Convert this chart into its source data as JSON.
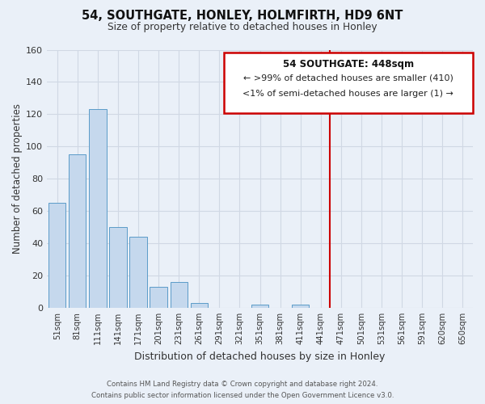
{
  "title": "54, SOUTHGATE, HONLEY, HOLMFIRTH, HD9 6NT",
  "subtitle": "Size of property relative to detached houses in Honley",
  "xlabel": "Distribution of detached houses by size in Honley",
  "ylabel": "Number of detached properties",
  "bar_labels": [
    "51sqm",
    "81sqm",
    "111sqm",
    "141sqm",
    "171sqm",
    "201sqm",
    "231sqm",
    "261sqm",
    "291sqm",
    "321sqm",
    "351sqm",
    "381sqm",
    "411sqm",
    "441sqm",
    "471sqm",
    "501sqm",
    "531sqm",
    "561sqm",
    "591sqm",
    "620sqm",
    "650sqm"
  ],
  "bar_values": [
    65,
    95,
    123,
    50,
    44,
    13,
    16,
    3,
    0,
    0,
    2,
    0,
    2,
    0,
    0,
    0,
    0,
    0,
    0,
    0,
    0
  ],
  "bar_color": "#c5d8ed",
  "bar_edge_color": "#5b9bc8",
  "vline_color": "#cc0000",
  "annotation_title": "54 SOUTHGATE: 448sqm",
  "annotation_line1": "← >99% of detached houses are smaller (410)",
  "annotation_line2": "<1% of semi-detached houses are larger (1) →",
  "annotation_box_color": "#cc0000",
  "background_color": "#eaf0f8",
  "ylim": [
    0,
    160
  ],
  "yticks": [
    0,
    20,
    40,
    60,
    80,
    100,
    120,
    140,
    160
  ],
  "footer_line1": "Contains HM Land Registry data © Crown copyright and database right 2024.",
  "footer_line2": "Contains public sector information licensed under the Open Government Licence v3.0."
}
